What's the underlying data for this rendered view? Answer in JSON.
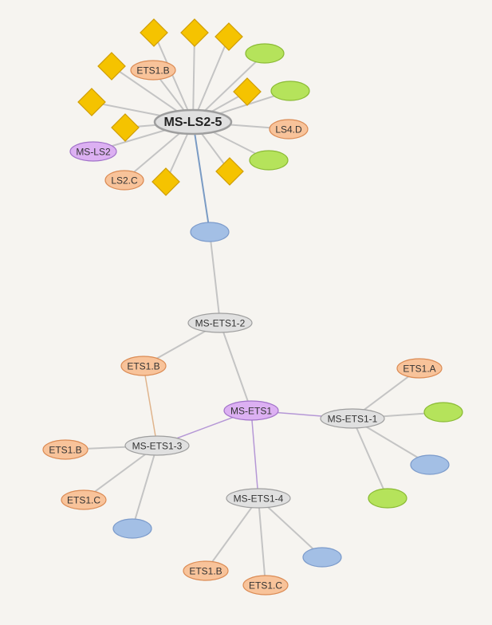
{
  "colors": {
    "background": "#f6f4f0",
    "edge": "#c4c4c4",
    "edge_highlight": "#7a9bc4",
    "edge_purple": "#b597d6",
    "edge_orange": "#e0b48c",
    "gray_node": "#e0e0e0",
    "gray_node_stroke": "#9e9e9e",
    "orange_node": "#f8c39a",
    "orange_node_stroke": "#db8b54",
    "purple_node": "#dcb0f2",
    "purple_node_stroke": "#a273c9",
    "green_node": "#b5e35b",
    "green_node_stroke": "#8bbb35",
    "blue_node": "#a3bfe5",
    "blue_node_stroke": "#7c9bcb",
    "diamond": "#f5c300",
    "diamond_stroke": "#cf9d00"
  },
  "nodes": [
    {
      "id": "ms-ls2-5",
      "label": "MS-LS2-5",
      "kind": "gray",
      "main": true
    },
    {
      "id": "ets1b-top",
      "label": "ETS1.B",
      "kind": "orange"
    },
    {
      "id": "ls4d",
      "label": "LS4.D",
      "kind": "orange"
    },
    {
      "id": "ms-ls2",
      "label": "MS-LS2",
      "kind": "purple"
    },
    {
      "id": "ls2c",
      "label": "LS2.C",
      "kind": "orange"
    },
    {
      "id": "green-1",
      "label": "",
      "kind": "green"
    },
    {
      "id": "green-2",
      "label": "",
      "kind": "green"
    },
    {
      "id": "green-3",
      "label": "",
      "kind": "green"
    },
    {
      "id": "diamond-1",
      "label": "",
      "kind": "diamond"
    },
    {
      "id": "diamond-2",
      "label": "",
      "kind": "diamond"
    },
    {
      "id": "diamond-3",
      "label": "",
      "kind": "diamond"
    },
    {
      "id": "diamond-4",
      "label": "",
      "kind": "diamond"
    },
    {
      "id": "diamond-5",
      "label": "",
      "kind": "diamond"
    },
    {
      "id": "diamond-6",
      "label": "",
      "kind": "diamond"
    },
    {
      "id": "diamond-7",
      "label": "",
      "kind": "diamond"
    },
    {
      "id": "diamond-8",
      "label": "",
      "kind": "diamond"
    },
    {
      "id": "diamond-9",
      "label": "",
      "kind": "diamond"
    },
    {
      "id": "blue-top",
      "label": "",
      "kind": "blue"
    },
    {
      "id": "ms-ets1-2",
      "label": "MS-ETS1-2",
      "kind": "gray"
    },
    {
      "id": "ets1b-mid",
      "label": "ETS1.B",
      "kind": "orange"
    },
    {
      "id": "ms-ets1",
      "label": "MS-ETS1",
      "kind": "purple"
    },
    {
      "id": "ms-ets1-1",
      "label": "MS-ETS1-1",
      "kind": "gray"
    },
    {
      "id": "ets1a",
      "label": "ETS1.A",
      "kind": "orange"
    },
    {
      "id": "green-4",
      "label": "",
      "kind": "green"
    },
    {
      "id": "blue-r",
      "label": "",
      "kind": "blue"
    },
    {
      "id": "green-5",
      "label": "",
      "kind": "green"
    },
    {
      "id": "ms-ets1-3",
      "label": "MS-ETS1-3",
      "kind": "gray"
    },
    {
      "id": "ets1b-left",
      "label": "ETS1.B",
      "kind": "orange"
    },
    {
      "id": "ets1c-left",
      "label": "ETS1.C",
      "kind": "orange"
    },
    {
      "id": "blue-l",
      "label": "",
      "kind": "blue"
    },
    {
      "id": "ms-ets1-4",
      "label": "MS-ETS1-4",
      "kind": "gray"
    },
    {
      "id": "blue-b",
      "label": "",
      "kind": "blue"
    },
    {
      "id": "ets1b-bottom",
      "label": "ETS1.B",
      "kind": "orange"
    },
    {
      "id": "ets1c-bottom",
      "label": "ETS1.C",
      "kind": "orange"
    }
  ],
  "edges": [
    {
      "from": "ms-ls2-5",
      "to": "diamond-1",
      "style": "plain"
    },
    {
      "from": "ms-ls2-5",
      "to": "diamond-2",
      "style": "plain"
    },
    {
      "from": "ms-ls2-5",
      "to": "diamond-3",
      "style": "plain"
    },
    {
      "from": "ms-ls2-5",
      "to": "diamond-4",
      "style": "plain"
    },
    {
      "from": "ms-ls2-5",
      "to": "diamond-5",
      "style": "plain"
    },
    {
      "from": "ms-ls2-5",
      "to": "diamond-6",
      "style": "plain"
    },
    {
      "from": "ms-ls2-5",
      "to": "diamond-7",
      "style": "plain"
    },
    {
      "from": "ms-ls2-5",
      "to": "diamond-8",
      "style": "plain"
    },
    {
      "from": "ms-ls2-5",
      "to": "diamond-9",
      "style": "plain"
    },
    {
      "from": "ms-ls2-5",
      "to": "ets1b-top",
      "style": "plain"
    },
    {
      "from": "ms-ls2-5",
      "to": "ls4d",
      "style": "plain"
    },
    {
      "from": "ms-ls2-5",
      "to": "ms-ls2",
      "style": "plain"
    },
    {
      "from": "ms-ls2-5",
      "to": "ls2c",
      "style": "plain"
    },
    {
      "from": "ms-ls2-5",
      "to": "green-1",
      "style": "plain"
    },
    {
      "from": "ms-ls2-5",
      "to": "green-2",
      "style": "plain"
    },
    {
      "from": "ms-ls2-5",
      "to": "green-3",
      "style": "plain"
    },
    {
      "from": "ms-ls2-5",
      "to": "blue-top",
      "style": "highlight"
    },
    {
      "from": "blue-top",
      "to": "ms-ets1-2",
      "style": "plain"
    },
    {
      "from": "ms-ets1-2",
      "to": "ets1b-mid",
      "style": "plain"
    },
    {
      "from": "ms-ets1-2",
      "to": "ms-ets1",
      "style": "plain"
    },
    {
      "from": "ets1b-mid",
      "to": "ms-ets1-3",
      "style": "orange"
    },
    {
      "from": "ms-ets1",
      "to": "ms-ets1-1",
      "style": "purple"
    },
    {
      "from": "ms-ets1",
      "to": "ms-ets1-3",
      "style": "purple"
    },
    {
      "from": "ms-ets1",
      "to": "ms-ets1-4",
      "style": "purple"
    },
    {
      "from": "ms-ets1-1",
      "to": "ets1a",
      "style": "plain"
    },
    {
      "from": "ms-ets1-1",
      "to": "green-4",
      "style": "plain"
    },
    {
      "from": "ms-ets1-1",
      "to": "blue-r",
      "style": "plain"
    },
    {
      "from": "ms-ets1-1",
      "to": "green-5",
      "style": "plain"
    },
    {
      "from": "ms-ets1-3",
      "to": "ets1b-left",
      "style": "plain"
    },
    {
      "from": "ms-ets1-3",
      "to": "ets1c-left",
      "style": "plain"
    },
    {
      "from": "ms-ets1-3",
      "to": "blue-l",
      "style": "plain"
    },
    {
      "from": "ms-ets1-4",
      "to": "blue-b",
      "style": "plain"
    },
    {
      "from": "ms-ets1-4",
      "to": "ets1b-bottom",
      "style": "plain"
    },
    {
      "from": "ms-ets1-4",
      "to": "ets1c-bottom",
      "style": "plain"
    }
  ]
}
